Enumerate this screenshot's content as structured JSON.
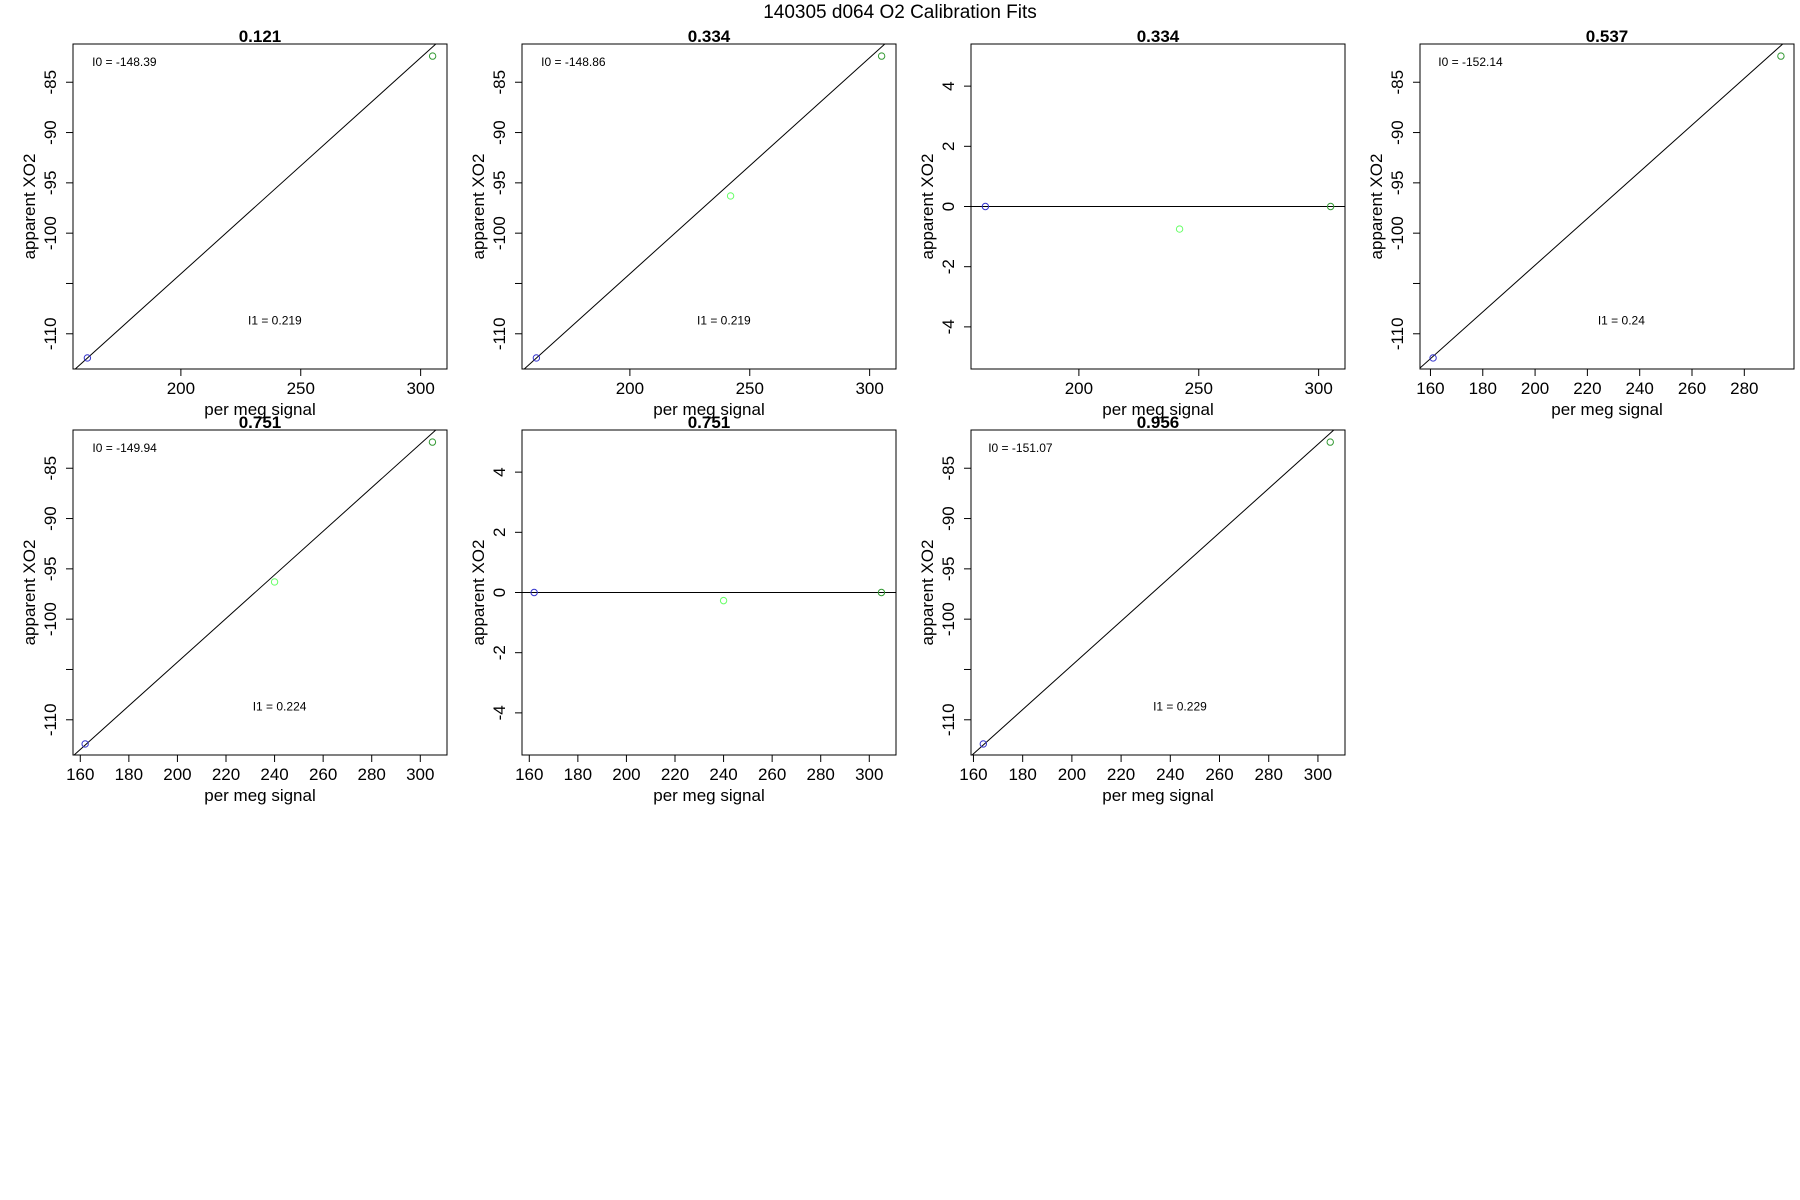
{
  "page_title": "140305   d064   O2 Calibration Fits",
  "colors": {
    "fit_line": "#000000",
    "frame": "#000000",
    "point_low": "#3333cc",
    "point_mid": "#66ff66",
    "point_high": "#339933"
  },
  "chart_data": [
    {
      "type": "scatter",
      "title": "0.121",
      "xlabel": "per meg signal",
      "ylabel": "apparent XO2",
      "xlim": [
        155,
        311
      ],
      "ylim": [
        -113.5,
        -81.2
      ],
      "x_ticks": [
        200,
        250,
        300
      ],
      "y_ticks": [
        -110,
        -105,
        -100,
        -95,
        -90,
        -85
      ],
      "y_tick_labels": [
        "-110",
        "",
        "-100",
        "-95",
        "-90",
        "-85"
      ],
      "fit_line": [
        [
          155,
          -113.7
        ],
        [
          311,
          -80.2
        ]
      ],
      "points": [
        {
          "x": 161,
          "y": -112.4,
          "color": "point_low"
        },
        {
          "x": 305,
          "y": -82.4,
          "color": "point_high"
        }
      ],
      "annotations": [
        {
          "text": "I0 =  -148.39",
          "at": [
            163,
            -83.4
          ]
        },
        {
          "text": "I1 =  0.219",
          "at": [
            228,
            -109.1
          ]
        }
      ]
    },
    {
      "type": "scatter",
      "title": "0.334",
      "xlabel": "per meg signal",
      "ylabel": "apparent XO2",
      "xlim": [
        155,
        311
      ],
      "ylim": [
        -113.5,
        -81.2
      ],
      "x_ticks": [
        200,
        250,
        300
      ],
      "y_ticks": [
        -110,
        -105,
        -100,
        -95,
        -90,
        -85
      ],
      "y_tick_labels": [
        "-110",
        "",
        "-100",
        "-95",
        "-90",
        "-85"
      ],
      "fit_line": [
        [
          155,
          -113.7
        ],
        [
          311,
          -80.2
        ]
      ],
      "points": [
        {
          "x": 161,
          "y": -112.4,
          "color": "point_low"
        },
        {
          "x": 242,
          "y": -96.3,
          "color": "point_mid"
        },
        {
          "x": 305,
          "y": -82.4,
          "color": "point_high"
        }
      ],
      "annotations": [
        {
          "text": "I0 =  -148.86",
          "at": [
            163,
            -83.4
          ]
        },
        {
          "text": "I1 =  0.219",
          "at": [
            228,
            -109.1
          ]
        }
      ]
    },
    {
      "type": "scatter",
      "title": "0.334",
      "xlabel": "per meg signal",
      "ylabel": "apparent XO2",
      "xlim": [
        155,
        311
      ],
      "ylim": [
        -5.4,
        5.4
      ],
      "x_ticks": [
        200,
        250,
        300
      ],
      "y_ticks": [
        -4,
        -2,
        0,
        2,
        4
      ],
      "y_tick_labels": [
        "-4",
        "-2",
        "0",
        "2",
        "4"
      ],
      "fit_line": [
        [
          155,
          0
        ],
        [
          311,
          0
        ]
      ],
      "points": [
        {
          "x": 161,
          "y": 0.0,
          "color": "point_low"
        },
        {
          "x": 242,
          "y": -0.75,
          "color": "point_mid"
        },
        {
          "x": 305,
          "y": 0.0,
          "color": "point_high"
        }
      ],
      "annotations": []
    },
    {
      "type": "scatter",
      "title": "0.537",
      "xlabel": "per meg signal",
      "ylabel": "apparent XO2",
      "xlim": [
        156,
        299
      ],
      "ylim": [
        -113.5,
        -81.2
      ],
      "x_ticks": [
        160,
        180,
        200,
        220,
        240,
        260,
        280
      ],
      "y_ticks": [
        -110,
        -105,
        -100,
        -95,
        -90,
        -85
      ],
      "y_tick_labels": [
        "-110",
        "",
        "-100",
        "-95",
        "-90",
        "-85"
      ],
      "fit_line": [
        [
          156,
          -113.4
        ],
        [
          299,
          -80.2
        ]
      ],
      "points": [
        {
          "x": 161,
          "y": -112.4,
          "color": "point_low"
        },
        {
          "x": 294,
          "y": -82.4,
          "color": "point_high"
        }
      ],
      "annotations": [
        {
          "text": "I0 =  -152.14",
          "at": [
            163,
            -83.4
          ]
        },
        {
          "text": "I1 =  0.24",
          "at": [
            224,
            -109.1
          ]
        }
      ]
    },
    {
      "type": "scatter",
      "title": "0.751",
      "xlabel": "per meg signal",
      "ylabel": "apparent XO2",
      "xlim": [
        157,
        311
      ],
      "ylim": [
        -113.5,
        -81.2
      ],
      "x_ticks": [
        160,
        180,
        200,
        220,
        240,
        260,
        280,
        300
      ],
      "y_ticks": [
        -110,
        -105,
        -100,
        -95,
        -90,
        -85
      ],
      "y_tick_labels": [
        "-110",
        "",
        "-100",
        "-95",
        "-90",
        "-85"
      ],
      "fit_line": [
        [
          157,
          -113.6
        ],
        [
          311,
          -80.2
        ]
      ],
      "points": [
        {
          "x": 162,
          "y": -112.4,
          "color": "point_low"
        },
        {
          "x": 240,
          "y": -96.3,
          "color": "point_mid"
        },
        {
          "x": 305,
          "y": -82.4,
          "color": "point_high"
        }
      ],
      "annotations": [
        {
          "text": "I0 =  -149.94",
          "at": [
            165,
            -83.4
          ]
        },
        {
          "text": "I1 =  0.224",
          "at": [
            231,
            -109.1
          ]
        }
      ]
    },
    {
      "type": "scatter",
      "title": "0.751",
      "xlabel": "per meg signal",
      "ylabel": "apparent XO2",
      "xlim": [
        157,
        311
      ],
      "ylim": [
        -5.4,
        5.4
      ],
      "x_ticks": [
        160,
        180,
        200,
        220,
        240,
        260,
        280,
        300
      ],
      "y_ticks": [
        -4,
        -2,
        0,
        2,
        4
      ],
      "y_tick_labels": [
        "-4",
        "-2",
        "0",
        "2",
        "4"
      ],
      "fit_line": [
        [
          157,
          0
        ],
        [
          311,
          0
        ]
      ],
      "points": [
        {
          "x": 162,
          "y": 0.0,
          "color": "point_low"
        },
        {
          "x": 240,
          "y": -0.27,
          "color": "point_mid"
        },
        {
          "x": 305,
          "y": 0.0,
          "color": "point_high"
        }
      ],
      "annotations": []
    },
    {
      "type": "scatter",
      "title": "0.956",
      "xlabel": "per meg signal",
      "ylabel": "apparent XO2",
      "xlim": [
        159,
        311
      ],
      "ylim": [
        -113.5,
        -81.2
      ],
      "x_ticks": [
        160,
        180,
        200,
        220,
        240,
        260,
        280,
        300
      ],
      "y_ticks": [
        -110,
        -105,
        -100,
        -95,
        -90,
        -85
      ],
      "y_tick_labels": [
        "-110",
        "",
        "-100",
        "-95",
        "-90",
        "-85"
      ],
      "fit_line": [
        [
          159,
          -113.6
        ],
        [
          311,
          -80.2
        ]
      ],
      "points": [
        {
          "x": 164,
          "y": -112.4,
          "color": "point_low"
        },
        {
          "x": 305,
          "y": -82.4,
          "color": "point_high"
        }
      ],
      "annotations": [
        {
          "text": "I0 =  -151.07",
          "at": [
            166,
            -83.4
          ]
        },
        {
          "text": "I1 =  0.229",
          "at": [
            233,
            -109.1
          ]
        }
      ]
    }
  ]
}
